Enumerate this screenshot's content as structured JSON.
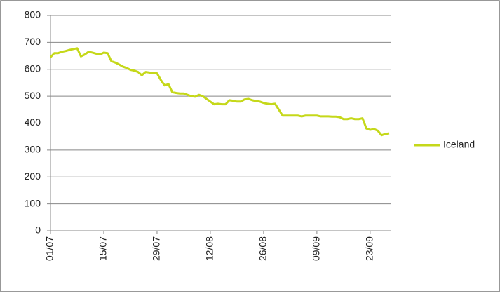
{
  "chart_data": {
    "type": "line",
    "categories": [
      "01/07",
      null,
      null,
      null,
      null,
      null,
      null,
      null,
      null,
      null,
      null,
      null,
      null,
      null,
      "15/07",
      null,
      null,
      null,
      null,
      null,
      null,
      null,
      null,
      null,
      null,
      null,
      null,
      null,
      "29/07",
      null,
      null,
      null,
      null,
      null,
      null,
      null,
      null,
      null,
      null,
      null,
      null,
      null,
      "12/08",
      null,
      null,
      null,
      null,
      null,
      null,
      null,
      null,
      null,
      null,
      null,
      null,
      null,
      "26/08",
      null,
      null,
      null,
      null,
      null,
      null,
      null,
      null,
      null,
      null,
      null,
      null,
      null,
      "09/09",
      null,
      null,
      null,
      null,
      null,
      null,
      null,
      null,
      null,
      null,
      null,
      null,
      null,
      "23/09",
      null,
      null,
      null,
      null,
      null
    ],
    "series": [
      {
        "name": "Iceland",
        "color": "#c5d81a",
        "values": [
          645,
          660,
          660,
          665,
          668,
          672,
          675,
          678,
          648,
          655,
          665,
          662,
          658,
          655,
          662,
          660,
          630,
          625,
          618,
          610,
          605,
          598,
          595,
          590,
          578,
          590,
          588,
          585,
          585,
          560,
          540,
          545,
          515,
          512,
          510,
          510,
          505,
          500,
          498,
          505,
          500,
          490,
          480,
          470,
          472,
          470,
          470,
          485,
          483,
          480,
          480,
          488,
          490,
          485,
          482,
          480,
          475,
          472,
          470,
          472,
          450,
          428,
          428,
          428,
          428,
          428,
          425,
          428,
          428,
          428,
          428,
          425,
          425,
          425,
          424,
          424,
          422,
          415,
          415,
          418,
          415,
          415,
          418,
          380,
          375,
          378,
          372,
          355,
          360,
          362
        ]
      }
    ],
    "ylim": [
      0,
      800
    ],
    "yticks": [
      0,
      100,
      200,
      300,
      400,
      500,
      600,
      700,
      800
    ],
    "grid": true,
    "legend": "right"
  }
}
